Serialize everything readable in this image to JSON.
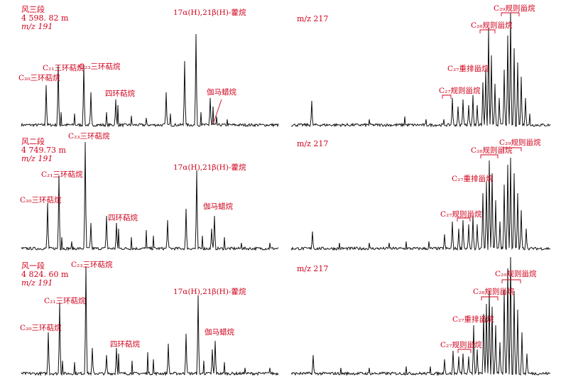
{
  "panels": [
    {
      "section": "风三段",
      "depth": "4 598. 82 m",
      "mz_left": "m/z 191",
      "mz_right": "m/z 217",
      "labels_left": [
        "C₂₀三环萜烷",
        "C₂₁三环萜烷",
        "C₂₃三环萜烷",
        "四环萜烷",
        "17α(H),21β(H)-藿烷",
        "伽马蜡烷"
      ],
      "labels_right": [
        "C₂₇规则甾烷",
        "C₂₈规则甾烷",
        "C₂₉规则甾烷",
        "C₂₇重排甾烷"
      ]
    },
    {
      "section": "风二段",
      "depth": "4 749.73 m",
      "mz_left": "m/z 191",
      "mz_right": "m/z 217",
      "labels_left": [
        "C₂₀三环萜烷",
        "C₂₁三环萜烷",
        "C₂₃三环萜烷",
        "四环萜烷",
        "17α(H),21β(H)-藿烷",
        "伽马蜡烷"
      ],
      "labels_right": [
        "C₂₇规则甾烷",
        "C₂₈规则甾烷",
        "C₂₉规则甾烷",
        "C₂₇重排甾烷"
      ]
    },
    {
      "section": "风一段",
      "depth": "4 824. 60 m",
      "mz_left": "m/z 191",
      "mz_right": "m/z 217",
      "labels_left": [
        "C₂₀三环萜烷",
        "C₂₁三环萜烷",
        "C₂₃三环萜烷",
        "四环萜烷",
        "17α(H),21β(H)-藿烷",
        "伽马蜡烷"
      ],
      "labels_right": [
        "C₂₇规则甾烷",
        "C₂₈规则甾烷",
        "C₂₉规则甾烷",
        "C₂₇重排甾烷"
      ]
    }
  ],
  "colors": {
    "trace": "#111111",
    "annotation": "#d0021b"
  }
}
